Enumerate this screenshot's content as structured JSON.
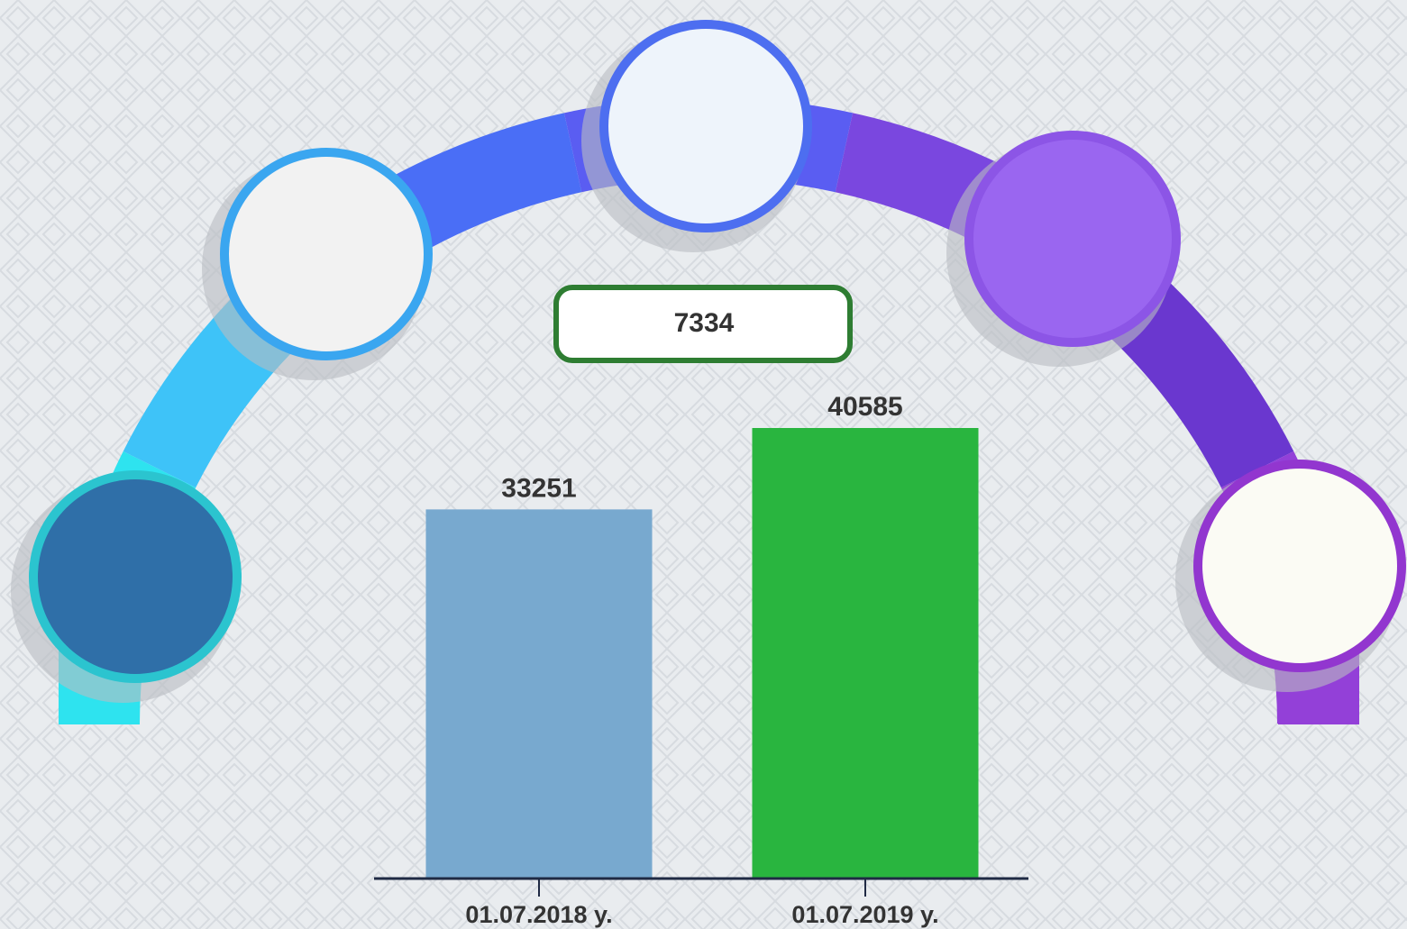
{
  "chart_data": {
    "type": "bar",
    "categories": [
      "01.07.2018 y.",
      "01.07.2019 y."
    ],
    "values": [
      33251,
      40585
    ],
    "colors": [
      "#78a9cf",
      "#29b53f"
    ],
    "annotation": 7334
  }
}
